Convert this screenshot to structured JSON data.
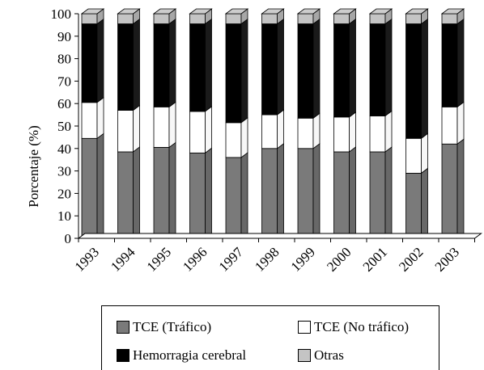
{
  "chart_data": {
    "type": "bar",
    "stacked": true,
    "three_d": true,
    "ylabel": "Porcentaje (%)",
    "xlabel": "",
    "ylim": [
      0,
      100
    ],
    "yticks": [
      "0",
      "10",
      "20",
      "30",
      "40",
      "50",
      "60",
      "70",
      "80",
      "90",
      "100"
    ],
    "grid": false,
    "legend_position": "bottom",
    "categories": [
      "1993",
      "1994",
      "1995",
      "1996",
      "1997",
      "1998",
      "1999",
      "2000",
      "2001",
      "2002",
      "2003"
    ],
    "series": [
      {
        "name": "TCE (Tráfico)",
        "color": "#7a7a7a",
        "values": [
          44.5,
          38.5,
          40.5,
          38,
          36,
          40,
          40,
          38.5,
          38.5,
          29,
          42
        ]
      },
      {
        "name": "TCE (No tráfico)",
        "color": "#ffffff",
        "values": [
          16,
          18.5,
          18,
          18.5,
          15.5,
          15,
          13.5,
          15.5,
          16,
          15.5,
          16.5
        ]
      },
      {
        "name": "Hemorragia cerebral",
        "color": "#000000",
        "values": [
          35,
          38.5,
          37,
          39,
          44,
          40.5,
          42,
          41.5,
          41,
          51,
          37
        ]
      },
      {
        "name": "Otras",
        "color": "#c4c4c4",
        "values": [
          4.5,
          4.5,
          4.5,
          4.5,
          4.5,
          4.5,
          4.5,
          4.5,
          4.5,
          4.5,
          4.5
        ]
      }
    ]
  },
  "legend": {
    "items": [
      {
        "label": "TCE (Tráfico)",
        "color": "#7a7a7a"
      },
      {
        "label": "TCE (No tráfico)",
        "color": "#ffffff"
      },
      {
        "label": "Hemorragia cerebral",
        "color": "#000000"
      },
      {
        "label": "Otras",
        "color": "#c4c4c4"
      }
    ]
  }
}
